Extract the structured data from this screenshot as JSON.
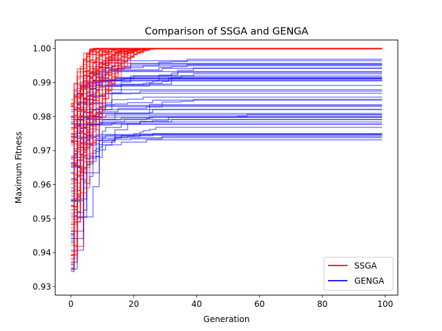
{
  "chart_data": {
    "type": "line",
    "title": "Comparison of SSGA and GENGA",
    "xlabel": "Generation",
    "ylabel": "Maximum Fitness",
    "xlim": [
      -5,
      104
    ],
    "ylim": [
      0.9275,
      1.0025
    ],
    "xticks": [
      0,
      20,
      40,
      60,
      80,
      100
    ],
    "yticks": [
      0.93,
      0.94,
      0.95,
      0.96,
      0.97,
      0.98,
      0.99,
      1.0
    ],
    "xtick_labels": [
      "0",
      "20",
      "40",
      "60",
      "80",
      "100"
    ],
    "ytick_labels": [
      "0.93",
      "0.94",
      "0.95",
      "0.96",
      "0.97",
      "0.98",
      "0.99",
      "1.00"
    ],
    "grid": false,
    "legend_position": "lower-right",
    "generations": 100,
    "series": [
      {
        "name": "SSGA",
        "color": "#ff0000",
        "runs": 50,
        "start_range": [
          0.935,
          0.985
        ],
        "converged_value": 1.0,
        "converged_by_generation_range": [
          7,
          30
        ]
      },
      {
        "name": "GENGA",
        "color": "#0000ff",
        "runs": 50,
        "start_range": [
          0.931,
          0.983
        ],
        "final_range": [
          0.973,
          0.998
        ],
        "typical_final_value": 0.985
      }
    ]
  }
}
